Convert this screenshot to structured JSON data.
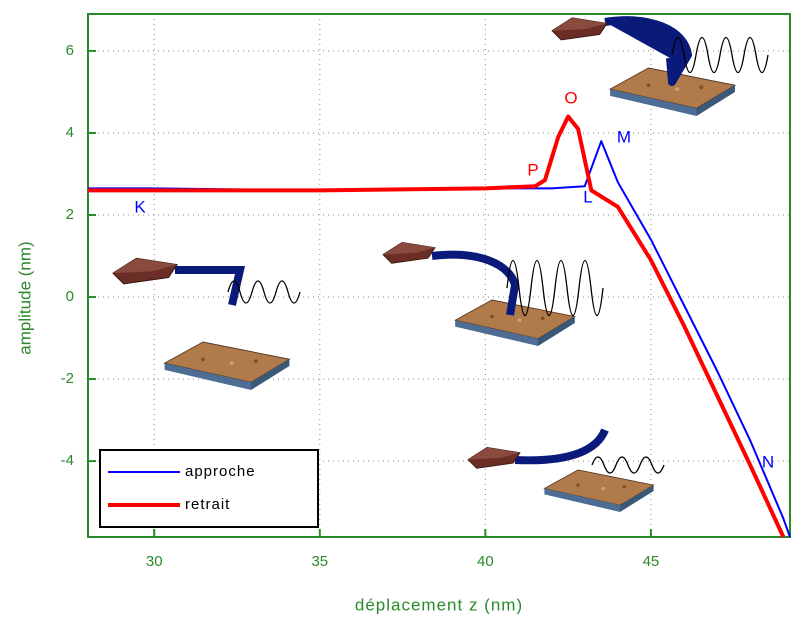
{
  "chart_data": {
    "type": "line",
    "xlabel": "déplacement z (nm)",
    "ylabel": "amplitude (nm)",
    "xlim": [
      28,
      49.2
    ],
    "ylim": [
      -5.85,
      6.9
    ],
    "xticks": [
      30,
      35,
      40,
      45
    ],
    "yticks": [
      -4,
      -2,
      0,
      2,
      4,
      6
    ],
    "grid": true,
    "legend": "lower left",
    "series": [
      {
        "name": "approche",
        "color": "#0000ff",
        "x": [
          28,
          30,
          35,
          40,
          42,
          43,
          43.5,
          44,
          45,
          46,
          47,
          48,
          49,
          49.2
        ],
        "values": [
          2.65,
          2.65,
          2.6,
          2.65,
          2.65,
          2.7,
          3.8,
          2.8,
          1.4,
          -0.2,
          -1.8,
          -3.5,
          -5.4,
          -5.85
        ]
      },
      {
        "name": "retrait",
        "color": "#ff0000",
        "x": [
          28,
          30,
          35,
          40,
          41.5,
          41.8,
          42.2,
          42.5,
          42.8,
          43.2,
          44,
          45,
          46,
          47,
          48,
          49
        ],
        "values": [
          2.6,
          2.6,
          2.6,
          2.65,
          2.7,
          2.85,
          3.9,
          4.4,
          4.1,
          2.6,
          2.2,
          0.9,
          -0.7,
          -2.4,
          -4.1,
          -5.85
        ]
      }
    ],
    "annotations": [
      {
        "text": "K",
        "color": "#0000ff"
      },
      {
        "text": "L",
        "color": "#0000ff"
      },
      {
        "text": "M",
        "color": "#0000ff"
      },
      {
        "text": "N",
        "color": "#0000ff"
      },
      {
        "text": "O",
        "color": "#ff0000"
      },
      {
        "text": "P",
        "color": "#ff0000"
      }
    ]
  }
}
